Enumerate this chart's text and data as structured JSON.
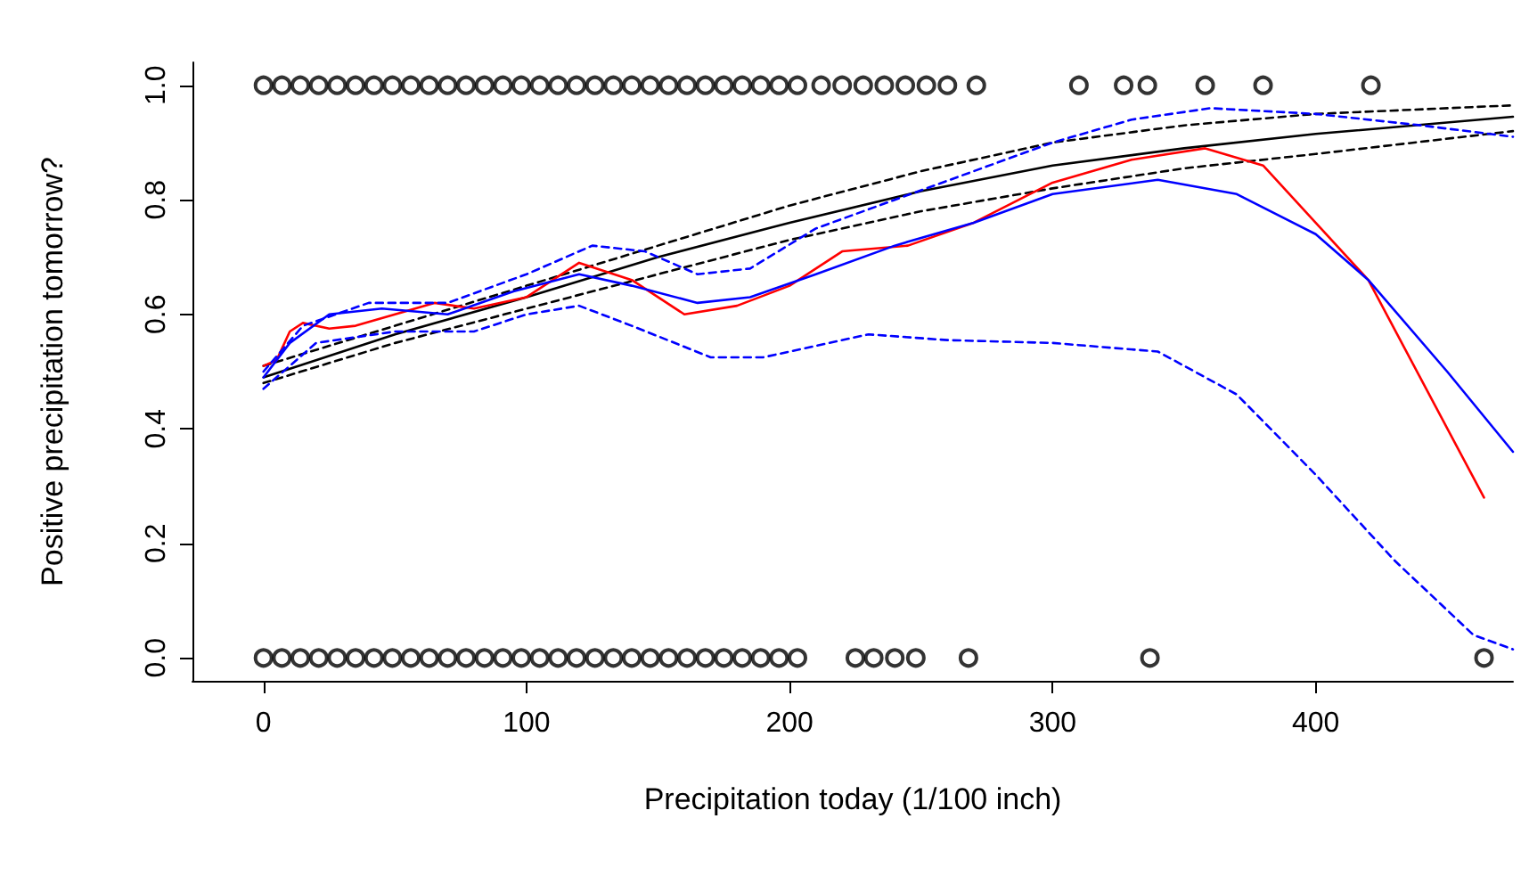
{
  "chart_data": {
    "type": "line",
    "xlabel": "Precipitation today (1/100 inch)",
    "ylabel": "Positive precipitation tomorrow?",
    "xlim": [
      -27,
      475
    ],
    "ylim": [
      -0.04,
      1.04
    ],
    "xticks": [
      0,
      100,
      200,
      300,
      400
    ],
    "yticks": [
      {
        "value": 0,
        "label": "0.0"
      },
      {
        "value": 0.2,
        "label": "0.2"
      },
      {
        "value": 0.4,
        "label": "0.4"
      },
      {
        "value": 0.6,
        "label": "0.6"
      },
      {
        "value": 0.8,
        "label": "0.8"
      },
      {
        "value": 1,
        "label": "1.0"
      }
    ],
    "grid": false,
    "series": [
      {
        "type": "scatter",
        "marker": "circle",
        "color": "#000000",
        "x": [
          0,
          7,
          14,
          21,
          28,
          35,
          42,
          49,
          56,
          63,
          70,
          77,
          84,
          91,
          98,
          105,
          112,
          119,
          126,
          133,
          140,
          147,
          154,
          161,
          168,
          175,
          182,
          189,
          196,
          203,
          212,
          220,
          228,
          236,
          244,
          252,
          260,
          271,
          310,
          327,
          336,
          358,
          380,
          421
        ],
        "values": [
          1,
          1,
          1,
          1,
          1,
          1,
          1,
          1,
          1,
          1,
          1,
          1,
          1,
          1,
          1,
          1,
          1,
          1,
          1,
          1,
          1,
          1,
          1,
          1,
          1,
          1,
          1,
          1,
          1,
          1,
          1,
          1,
          1,
          1,
          1,
          1,
          1,
          1,
          1,
          1,
          1,
          1,
          1,
          1
        ]
      },
      {
        "type": "scatter",
        "marker": "circle",
        "color": "#000000",
        "x": [
          0,
          7,
          14,
          21,
          28,
          35,
          42,
          49,
          56,
          63,
          70,
          77,
          84,
          91,
          98,
          105,
          112,
          119,
          126,
          133,
          140,
          147,
          154,
          161,
          168,
          175,
          182,
          189,
          196,
          203,
          225,
          232,
          240,
          248,
          268,
          337,
          464
        ],
        "values": [
          0,
          0,
          0,
          0,
          0,
          0,
          0,
          0,
          0,
          0,
          0,
          0,
          0,
          0,
          0,
          0,
          0,
          0,
          0,
          0,
          0,
          0,
          0,
          0,
          0,
          0,
          0,
          0,
          0,
          0,
          0,
          0,
          0,
          0,
          0,
          0,
          0
        ]
      },
      {
        "type": "line",
        "line_style": "solid",
        "marker": "none",
        "color": "#000000",
        "x": [
          0,
          50,
          100,
          150,
          200,
          250,
          300,
          350,
          400,
          475
        ],
        "values": [
          0.49,
          0.565,
          0.63,
          0.7,
          0.76,
          0.815,
          0.86,
          0.89,
          0.915,
          0.945
        ]
      },
      {
        "type": "line",
        "line_style": "dashed",
        "marker": "none",
        "color": "#000000",
        "x": [
          0,
          50,
          100,
          150,
          200,
          250,
          300,
          350,
          400,
          475
        ],
        "values": [
          0.51,
          0.58,
          0.65,
          0.72,
          0.79,
          0.85,
          0.9,
          0.93,
          0.95,
          0.965
        ]
      },
      {
        "type": "line",
        "line_style": "dashed",
        "marker": "none",
        "color": "#000000",
        "x": [
          0,
          50,
          100,
          150,
          200,
          250,
          300,
          350,
          400,
          475
        ],
        "values": [
          0.48,
          0.55,
          0.61,
          0.67,
          0.73,
          0.78,
          0.82,
          0.855,
          0.88,
          0.92
        ]
      },
      {
        "type": "line",
        "line_style": "solid",
        "marker": "none",
        "color": "#ff0000",
        "x": [
          0,
          5,
          10,
          15,
          25,
          35,
          50,
          65,
          80,
          100,
          120,
          140,
          160,
          180,
          200,
          220,
          245,
          270,
          300,
          330,
          358,
          380,
          420,
          464
        ],
        "values": [
          0.51,
          0.52,
          0.57,
          0.585,
          0.575,
          0.58,
          0.6,
          0.62,
          0.61,
          0.63,
          0.69,
          0.66,
          0.6,
          0.615,
          0.65,
          0.71,
          0.72,
          0.76,
          0.83,
          0.87,
          0.89,
          0.86,
          0.66,
          0.28
        ]
      },
      {
        "type": "line",
        "line_style": "solid",
        "marker": "none",
        "color": "#0000ff",
        "x": [
          0,
          10,
          25,
          45,
          70,
          95,
          120,
          140,
          165,
          185,
          210,
          240,
          270,
          300,
          340,
          370,
          400,
          420,
          450,
          475
        ],
        "values": [
          0.49,
          0.55,
          0.6,
          0.61,
          0.6,
          0.64,
          0.67,
          0.65,
          0.62,
          0.63,
          0.67,
          0.72,
          0.76,
          0.81,
          0.835,
          0.81,
          0.74,
          0.66,
          0.5,
          0.36
        ]
      },
      {
        "type": "line",
        "line_style": "dashed",
        "marker": "none",
        "color": "#0000ff",
        "x": [
          0,
          15,
          40,
          70,
          100,
          125,
          145,
          165,
          185,
          210,
          240,
          270,
          300,
          330,
          360,
          400,
          440,
          475
        ],
        "values": [
          0.5,
          0.58,
          0.62,
          0.62,
          0.67,
          0.72,
          0.71,
          0.67,
          0.68,
          0.75,
          0.8,
          0.85,
          0.9,
          0.94,
          0.96,
          0.95,
          0.93,
          0.91
        ]
      },
      {
        "type": "line",
        "line_style": "dashed",
        "marker": "none",
        "color": "#0000ff",
        "x": [
          0,
          20,
          50,
          80,
          100,
          120,
          140,
          170,
          190,
          230,
          260,
          300,
          340,
          370,
          400,
          430,
          460,
          475
        ],
        "values": [
          0.47,
          0.55,
          0.57,
          0.57,
          0.6,
          0.615,
          0.58,
          0.525,
          0.525,
          0.565,
          0.555,
          0.55,
          0.535,
          0.46,
          0.32,
          0.17,
          0.04,
          0.015
        ]
      }
    ]
  }
}
